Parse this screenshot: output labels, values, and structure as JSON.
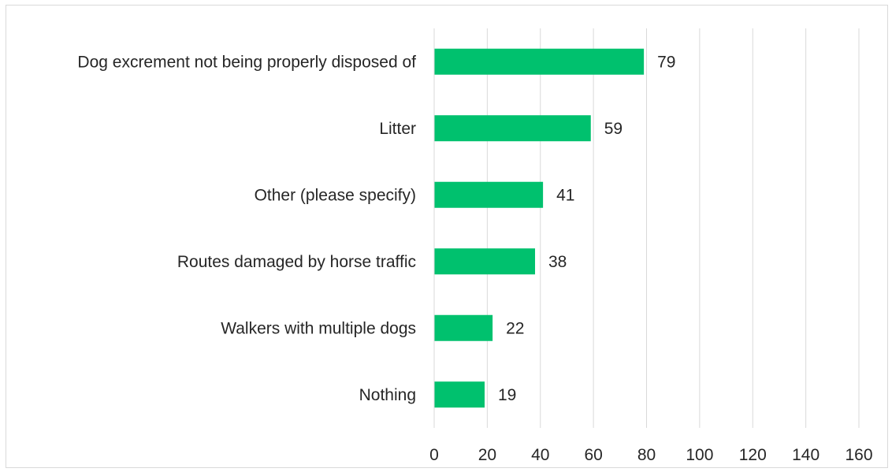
{
  "chart_data": {
    "type": "bar",
    "orientation": "horizontal",
    "categories": [
      "Dog excrement not being properly disposed of",
      "Litter",
      "Other (please specify)",
      "Routes damaged by horse traffic",
      "Walkers with multiple dogs",
      "Nothing"
    ],
    "values": [
      79,
      59,
      41,
      38,
      22,
      19
    ],
    "xlim": [
      0,
      160
    ],
    "xticks": [
      0,
      20,
      40,
      60,
      80,
      100,
      120,
      140,
      160
    ],
    "grid": "vertical",
    "data_labels": true,
    "legend": "none",
    "bar_color": "#00c16e",
    "grid_color": "#d9d9d9",
    "text_color": "#262626"
  }
}
